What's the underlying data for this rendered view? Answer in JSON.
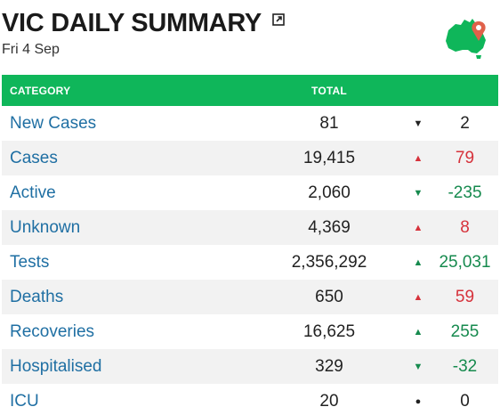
{
  "header": {
    "title": "VIC DAILY SUMMARY",
    "date": "Fri 4 Sep"
  },
  "colors": {
    "header_bg": "#0fb65a",
    "category_text": "#1f6fa3",
    "increase_bad": "#d6323b",
    "change_good": "#168a4e"
  },
  "table": {
    "columns": [
      "CATEGORY",
      "TOTAL"
    ],
    "rows": [
      {
        "category": "New Cases",
        "total": "81",
        "arrow": "▼",
        "change": "2"
      },
      {
        "category": "Cases",
        "total": "19,415",
        "arrow": "▲",
        "change": "79"
      },
      {
        "category": "Active",
        "total": "2,060",
        "arrow": "▼",
        "change": "-235"
      },
      {
        "category": "Unknown",
        "total": "4,369",
        "arrow": "▲",
        "change": "8"
      },
      {
        "category": "Tests",
        "total": "2,356,292",
        "arrow": "▲",
        "change": "25,031"
      },
      {
        "category": "Deaths",
        "total": "650",
        "arrow": "▲",
        "change": "59"
      },
      {
        "category": "Recoveries",
        "total": "16,625",
        "arrow": "▲",
        "change": "255"
      },
      {
        "category": "Hospitalised",
        "total": "329",
        "arrow": "▼",
        "change": "-32"
      },
      {
        "category": "ICU",
        "total": "20",
        "arrow": "●",
        "change": "0"
      }
    ]
  }
}
